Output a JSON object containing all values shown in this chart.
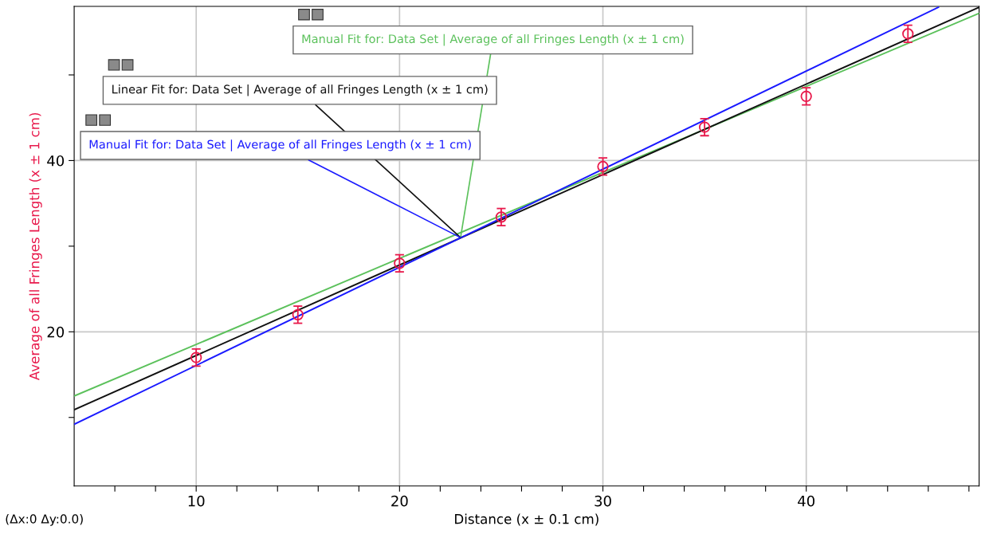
{
  "chart_data": {
    "type": "scatter",
    "xlabel": "Distance (x ± 0.1 cm)",
    "ylabel": "Average of all Fringes Length (x ± 1 cm)",
    "x": [
      10,
      15,
      20,
      25,
      30,
      35,
      40,
      45
    ],
    "series": [
      {
        "color": "#e8194b",
        "values": [
          17.0,
          22.0,
          28.0,
          33.4,
          39.3,
          43.9,
          47.5,
          54.8
        ],
        "errors": [
          1,
          1,
          1,
          1,
          1,
          1,
          1,
          1
        ],
        "marker": "circle"
      },
      {
        "type": "line",
        "name": "Manual Fit for: Data Set | Average of all Fringes Length (x ± 1 cm)",
        "color": "#5bc15b",
        "x": [
          4,
          48.5
        ],
        "values": [
          12.5,
          57.2
        ]
      },
      {
        "type": "line",
        "name": "Linear Fit for: Data Set | Average of all Fringes Length (x ± 1 cm)",
        "color": "#111111",
        "x": [
          4,
          48.5
        ],
        "values": [
          10.9,
          57.9
        ]
      },
      {
        "type": "line",
        "name": "Manual Fit for: Data Set | Average of all Fringes Length (x ± 1 cm)",
        "color": "#1a1aff",
        "x": [
          4,
          46.5
        ],
        "values": [
          9.2,
          57.9
        ]
      }
    ],
    "xlim": [
      4,
      48.5
    ],
    "ylim": [
      2,
      58
    ],
    "xticks": [
      {
        "value": 6,
        "label": null
      },
      {
        "value": 8,
        "label": null
      },
      10,
      {
        "value": 12,
        "label": null
      },
      {
        "value": 14,
        "label": null
      },
      {
        "value": 16,
        "label": null
      },
      {
        "value": 18,
        "label": null
      },
      20,
      {
        "value": 22,
        "label": null
      },
      {
        "value": 24,
        "label": null
      },
      {
        "value": 26,
        "label": null
      },
      {
        "value": 28,
        "label": null
      },
      30,
      {
        "value": 32,
        "label": null
      },
      {
        "value": 34,
        "label": null
      },
      {
        "value": 36,
        "label": null
      },
      {
        "value": 38,
        "label": null
      },
      40,
      {
        "value": 42,
        "label": null
      },
      {
        "value": 44,
        "label": null
      },
      {
        "value": 46,
        "label": null
      },
      {
        "value": 48,
        "label": null
      }
    ],
    "yticks": [
      {
        "value": 10,
        "label": null
      },
      20,
      {
        "value": 30,
        "label": null
      },
      40,
      {
        "value": 50,
        "label": null
      }
    ],
    "grid": true,
    "legend": false,
    "annotations": [
      "(Δx:0 Δy:0.0)"
    ]
  }
}
